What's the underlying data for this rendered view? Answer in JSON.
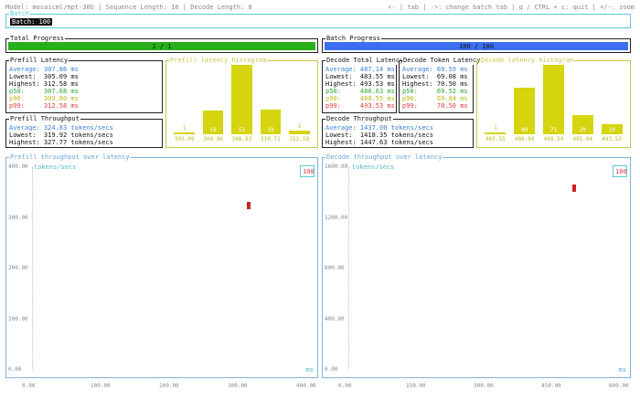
{
  "header": {
    "model_info": "Model: mosaicml/mpt-30b | Sequence Length: 10 | Decode Length: 8",
    "shortcuts": "<- | tab | ->: change batch tab | q / CTRL + c: quit | +/-: zoom"
  },
  "batch_selector": {
    "title": "Batch",
    "selected": "Batch: 100"
  },
  "total_progress": {
    "title": "Total Progress",
    "label": "1 / 1",
    "fraction": 1.0,
    "color": "#27b01a"
  },
  "batch_progress": {
    "title": "Batch Progress",
    "label": "100 / 100",
    "fraction": 1.0,
    "color": "#3b6ff0"
  },
  "prefill_latency": {
    "title": "Prefill Latency",
    "average": "Average: 307.86 ms",
    "lowest": "Lowest:  305.09 ms",
    "highest": "Highest: 312.58 ms",
    "p50": "p50:     307.68 ms",
    "p90": "p90:     309.80 ms",
    "p99": "p99:     312.58 ms"
  },
  "prefill_throughput": {
    "title": "Prefill Throughput",
    "average": "Average: 324.83 tokens/secs",
    "lowest": "Lowest:  319.92 tokens/secs",
    "highest": "Highest: 327.77 tokens/secs"
  },
  "decode_total_latency": {
    "title": "Decode Total Latency",
    "average": "Average: 487.14 ms",
    "lowest": "Lowest:  483.55 ms",
    "highest": "Highest: 493.53 ms",
    "p50": "p50:     486.63 ms",
    "p90": "p90:     488.55 ms",
    "p99": "p99:     493.53 ms"
  },
  "decode_token_latency": {
    "title": "Decode Token Latency",
    "average": "Average: 69.59 ms",
    "lowest": "Lowest:  69.08 ms",
    "highest": "Highest: 70.50 ms",
    "p50": "p50:     69.52 ms",
    "p90": "p90:     69.84 ms",
    "p99": "p99:     70.50 ms"
  },
  "decode_throughput": {
    "title": "Decode Throughput",
    "average": "Average: 1437.00 tokens/secs",
    "lowest": "Lowest:  1418.35 tokens/secs",
    "highest": "Highest: 1447.63 tokens/secs"
  },
  "chart_data": [
    {
      "type": "bar",
      "title": "Prefill latency histogram",
      "categories": [
        "305.09",
        "306.96",
        "308.83",
        "310.71",
        "312.58"
      ],
      "values": [
        1,
        18,
        53,
        19,
        3
      ],
      "color": "#d5d40f"
    },
    {
      "type": "bar",
      "title": "Decode latency histogram",
      "categories": [
        "483.55",
        "486.04",
        "488.54",
        "491.04",
        "493.53"
      ],
      "values": [
        1,
        48,
        71,
        20,
        10
      ],
      "color": "#d5d40f"
    },
    {
      "type": "scatter",
      "title": "Prefill throughput over latency",
      "xlabel": "ms",
      "ylabel": "tokens/secs",
      "xlim": [
        0,
        400
      ],
      "ylim": [
        0,
        400
      ],
      "x_ticks": [
        "0.00",
        "100.00",
        "200.00",
        "300.00",
        "400.00"
      ],
      "y_ticks": [
        "0.00",
        "100.00",
        "200.00",
        "300.00",
        "400.00"
      ],
      "legend": "100",
      "legend_placement": "top-right",
      "points": [
        {
          "x": 307.86,
          "y": 324.83
        }
      ],
      "color": "#cc2222"
    },
    {
      "type": "scatter",
      "title": "Decode throughput over latency",
      "xlabel": "ms",
      "ylabel": "tokens/secs",
      "xlim": [
        0,
        600
      ],
      "ylim": [
        0,
        1600
      ],
      "x_ticks": [
        "0.00",
        "150.00",
        "300.00",
        "450.00",
        "600.00"
      ],
      "y_ticks": [
        "0.00",
        "400.00",
        "800.00",
        "1200.00",
        "1600.00"
      ],
      "legend": "100",
      "legend_placement": "top-right",
      "points": [
        {
          "x": 487.14,
          "y": 1437.0
        }
      ],
      "color": "#cc2222"
    }
  ]
}
